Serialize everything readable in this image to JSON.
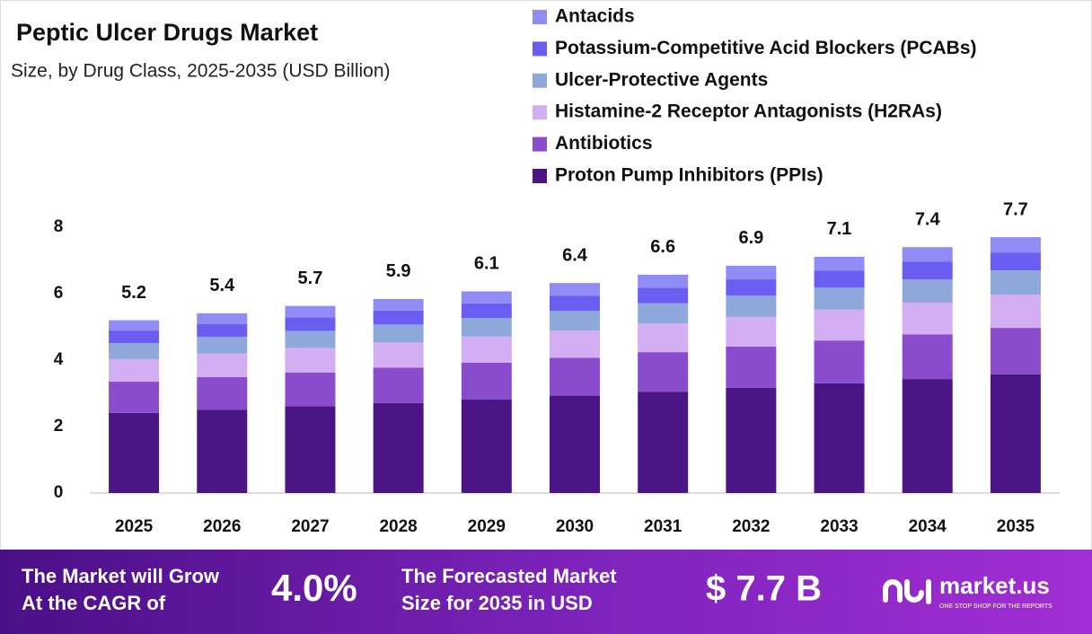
{
  "chart_data": {
    "type": "bar",
    "stacked": true,
    "title": "Peptic Ulcer Drugs Market",
    "subtitle": "Size, by Drug Class, 2025-2035 (USD Billion)",
    "categories": [
      "2025",
      "2026",
      "2027",
      "2028",
      "2029",
      "2030",
      "2031",
      "2032",
      "2033",
      "2034",
      "2035"
    ],
    "series": [
      {
        "name": "Proton Pump Inhibitors (PPIs)",
        "color": "#4b1585",
        "values": [
          2.41,
          2.51,
          2.61,
          2.71,
          2.82,
          2.93,
          3.05,
          3.17,
          3.3,
          3.43,
          3.57
        ]
      },
      {
        "name": "Antibiotics",
        "color": "#8a4bcc",
        "values": [
          0.94,
          0.98,
          1.02,
          1.06,
          1.1,
          1.14,
          1.19,
          1.24,
          1.29,
          1.34,
          1.4
        ]
      },
      {
        "name": "Histamine-2 Receptor Antagonists (H2RAs)",
        "color": "#d4aef2",
        "values": [
          0.68,
          0.71,
          0.73,
          0.76,
          0.79,
          0.82,
          0.86,
          0.89,
          0.93,
          0.96,
          1.0
        ]
      },
      {
        "name": "Ulcer-Protective Agents",
        "color": "#8fa8dc",
        "values": [
          0.48,
          0.5,
          0.52,
          0.54,
          0.56,
          0.59,
          0.61,
          0.64,
          0.66,
          0.7,
          0.73
        ]
      },
      {
        "name": "Potassium-Competitive Acid Blockers (PCABs)",
        "color": "#6a5df2",
        "values": [
          0.38,
          0.39,
          0.41,
          0.42,
          0.44,
          0.46,
          0.47,
          0.49,
          0.51,
          0.53,
          0.54
        ]
      },
      {
        "name": "Antacids",
        "color": "#8f8df5",
        "values": [
          0.31,
          0.32,
          0.34,
          0.35,
          0.36,
          0.38,
          0.39,
          0.41,
          0.42,
          0.44,
          0.46
        ]
      }
    ],
    "totals": [
      5.2,
      5.4,
      5.7,
      5.9,
      6.1,
      6.4,
      6.6,
      6.9,
      7.1,
      7.4,
      7.7
    ],
    "ylim": [
      0,
      8
    ],
    "yticks": [
      0,
      2,
      4,
      6,
      8
    ],
    "grid": false
  },
  "footer": {
    "cagr_text": [
      "The Market will Grow",
      "At the CAGR of"
    ],
    "cagr": "4.0%",
    "forecast_text": [
      "The Forecasted Market",
      "Size for 2035 in USD"
    ],
    "forecast_value": "$ 7.7 B",
    "brand": "market.us",
    "tagline": "ONE STOP SHOP FOR THE REPORTS"
  }
}
